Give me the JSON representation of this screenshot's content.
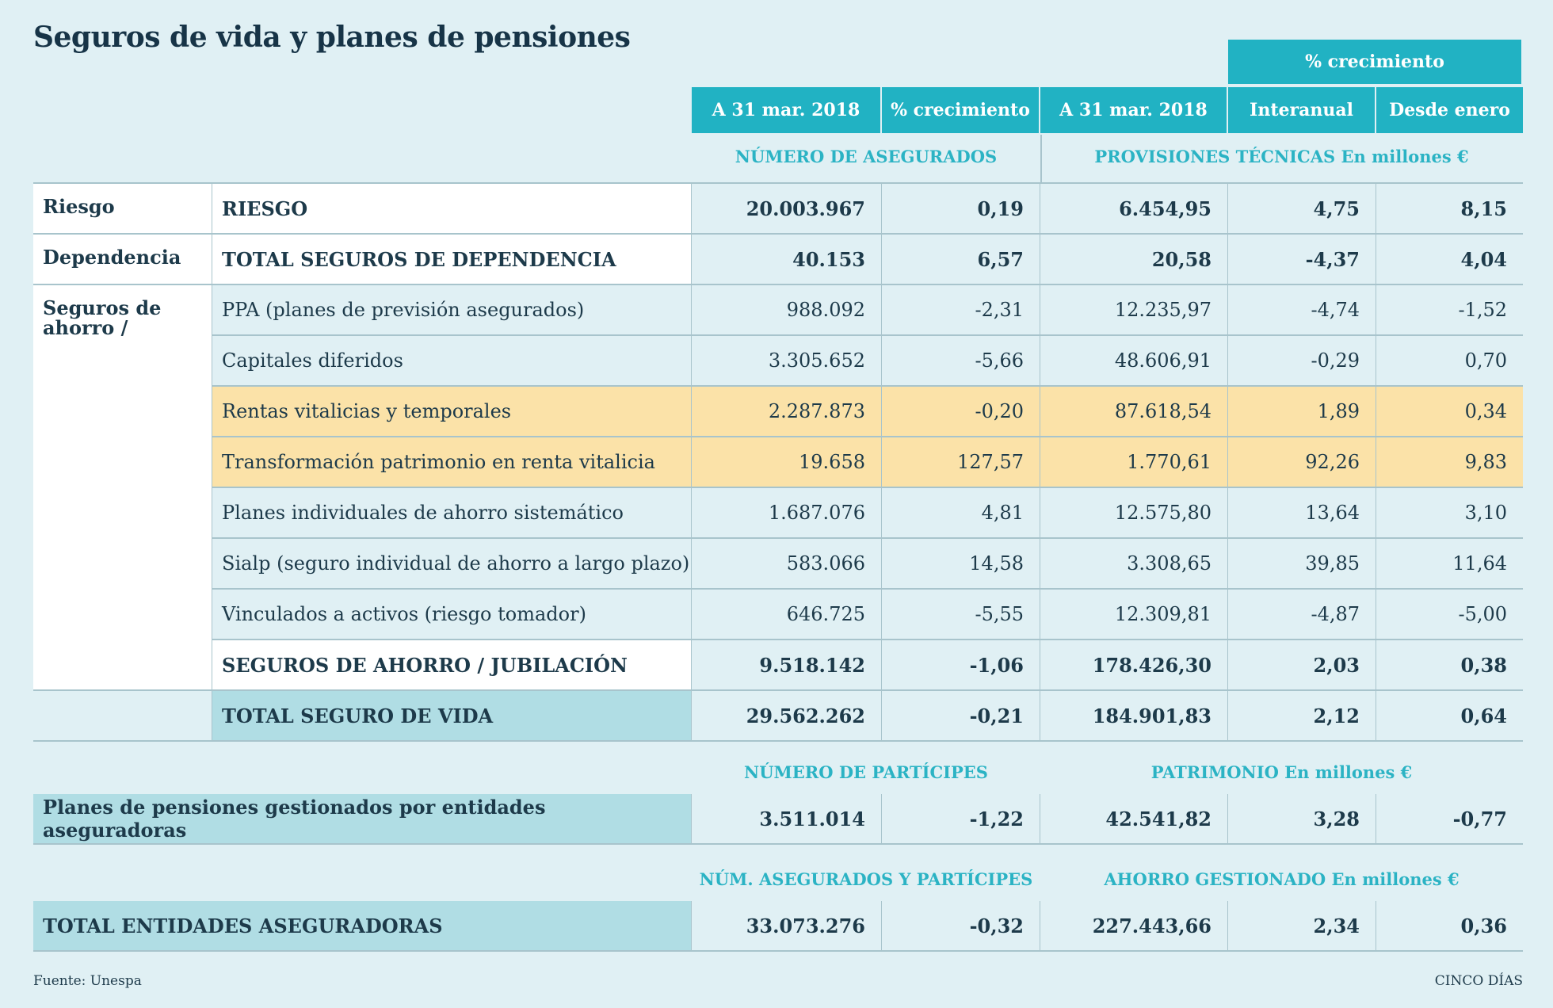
{
  "title": "Seguros de vida y planes de pensiones",
  "headers": {
    "growth_group": "% crecimiento",
    "cols": [
      "A 31 mar. 2018",
      "% crecimiento",
      "A 31 mar. 2018",
      "Interanual",
      "Desde enero"
    ]
  },
  "sections": {
    "asegurados": "NÚMERO DE ASEGURADOS",
    "provisiones": "PROVISIONES TÉCNICAS En millones €",
    "participes": "NÚMERO DE PARTÍCIPES",
    "patrimonio": "PATRIMONIO En millones €",
    "asegurados_participes": "NÚM. ASEGURADOS Y PARTÍCIPES",
    "ahorro": "AHORRO GESTIONADO En millones €"
  },
  "categories": {
    "riesgo": "Riesgo",
    "dependencia": "Dependencia",
    "ahorro": "Seguros de ahorro / jubilación"
  },
  "rows": [
    {
      "label": "RIESGO",
      "v": [
        "20.003.967",
        "0,19",
        "6.454,95",
        "4,75",
        "8,15"
      ]
    },
    {
      "label": "TOTAL SEGUROS DE DEPENDENCIA",
      "v": [
        "40.153",
        "6,57",
        "20,58",
        "-4,37",
        "4,04"
      ]
    },
    {
      "label": "PPA (planes de previsión asegurados)",
      "v": [
        "988.092",
        "-2,31",
        "12.235,97",
        "-4,74",
        "-1,52"
      ]
    },
    {
      "label": "Capitales diferidos",
      "v": [
        "3.305.652",
        "-5,66",
        "48.606,91",
        "-0,29",
        "0,70"
      ]
    },
    {
      "label": "Rentas vitalicias y temporales",
      "v": [
        "2.287.873",
        "-0,20",
        "87.618,54",
        "1,89",
        "0,34"
      ]
    },
    {
      "label": "Transformación patrimonio en renta vitalicia",
      "v": [
        "19.658",
        "127,57",
        "1.770,61",
        "92,26",
        "9,83"
      ]
    },
    {
      "label": "Planes individuales de ahorro sistemático",
      "v": [
        "1.687.076",
        "4,81",
        "12.575,80",
        "13,64",
        "3,10"
      ]
    },
    {
      "label": "Sialp (seguro individual de ahorro a largo plazo)",
      "v": [
        "583.066",
        "14,58",
        "3.308,65",
        "39,85",
        "11,64"
      ]
    },
    {
      "label": "Vinculados a activos (riesgo tomador)",
      "v": [
        "646.725",
        "-5,55",
        "12.309,81",
        "-4,87",
        "-5,00"
      ]
    },
    {
      "label": "SEGUROS DE AHORRO / JUBILACIÓN",
      "v": [
        "9.518.142",
        "-1,06",
        "178.426,30",
        "2,03",
        "0,38"
      ]
    },
    {
      "label": "TOTAL SEGURO DE VIDA",
      "v": [
        "29.562.262",
        "-0,21",
        "184.901,83",
        "2,12",
        "0,64"
      ]
    }
  ],
  "planes": {
    "label": "Planes de pensiones gestionados por entidades aseguradoras",
    "v": [
      "3.511.014",
      "-1,22",
      "42.541,82",
      "3,28",
      "-0,77"
    ]
  },
  "total": {
    "label": "TOTAL ENTIDADES ASEGURADORAS",
    "v": [
      "33.073.276",
      "-0,32",
      "227.443,66",
      "2,34",
      "0,36"
    ]
  },
  "footer": {
    "source": "Fuente: Unespa",
    "brand": "CINCO DÍAS"
  },
  "colors": {
    "accent": "#21b2c3",
    "highlight": "#fbe2a8",
    "total": "#b0dde4"
  }
}
